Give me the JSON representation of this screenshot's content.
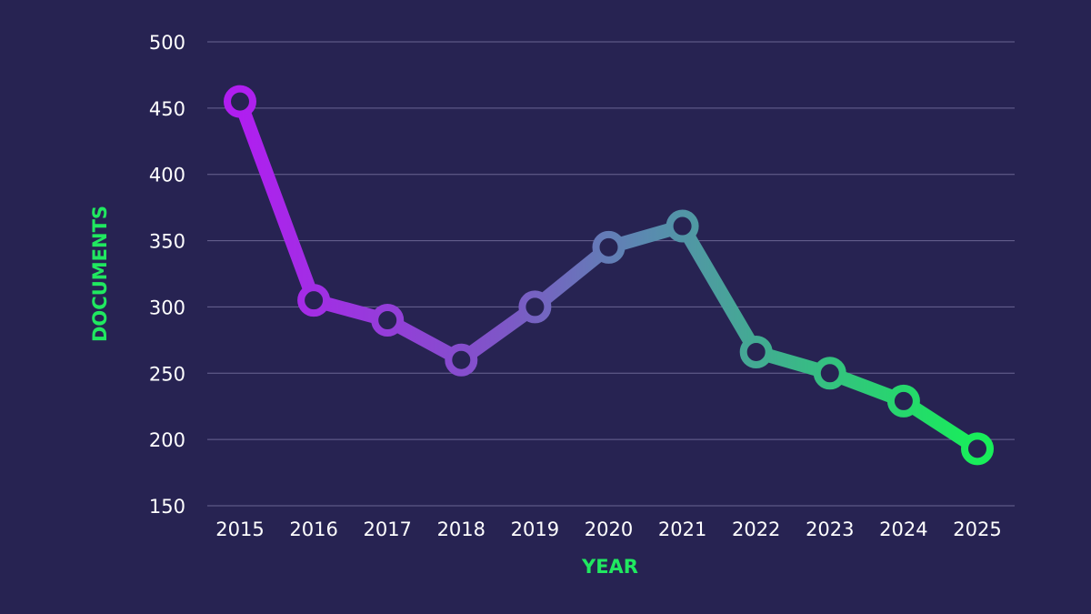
{
  "chart_data": {
    "type": "line",
    "title": "",
    "xlabel": "YEAR",
    "ylabel": "DOCUMENTS",
    "x": [
      "2015",
      "2016",
      "2017",
      "2018",
      "2019",
      "2020",
      "2021",
      "2022",
      "2023",
      "2024",
      "2025"
    ],
    "series": [
      {
        "values": [
          455,
          305,
          290,
          260,
          300,
          345,
          361,
          266,
          250,
          229,
          193
        ]
      }
    ],
    "ylim": [
      150,
      500
    ],
    "yticks": [
      "150",
      "200",
      "250",
      "300",
      "350",
      "400",
      "450",
      "500"
    ],
    "grid": true,
    "legend": "none"
  },
  "colors": {
    "background": "#272352",
    "line_start": "#b01ef0",
    "line_mid": "#5a8ab0",
    "line_end": "#18ee5a",
    "axis_title": "#20e860",
    "tick_text": "#ffffff",
    "gridline": "#6a6592"
  }
}
